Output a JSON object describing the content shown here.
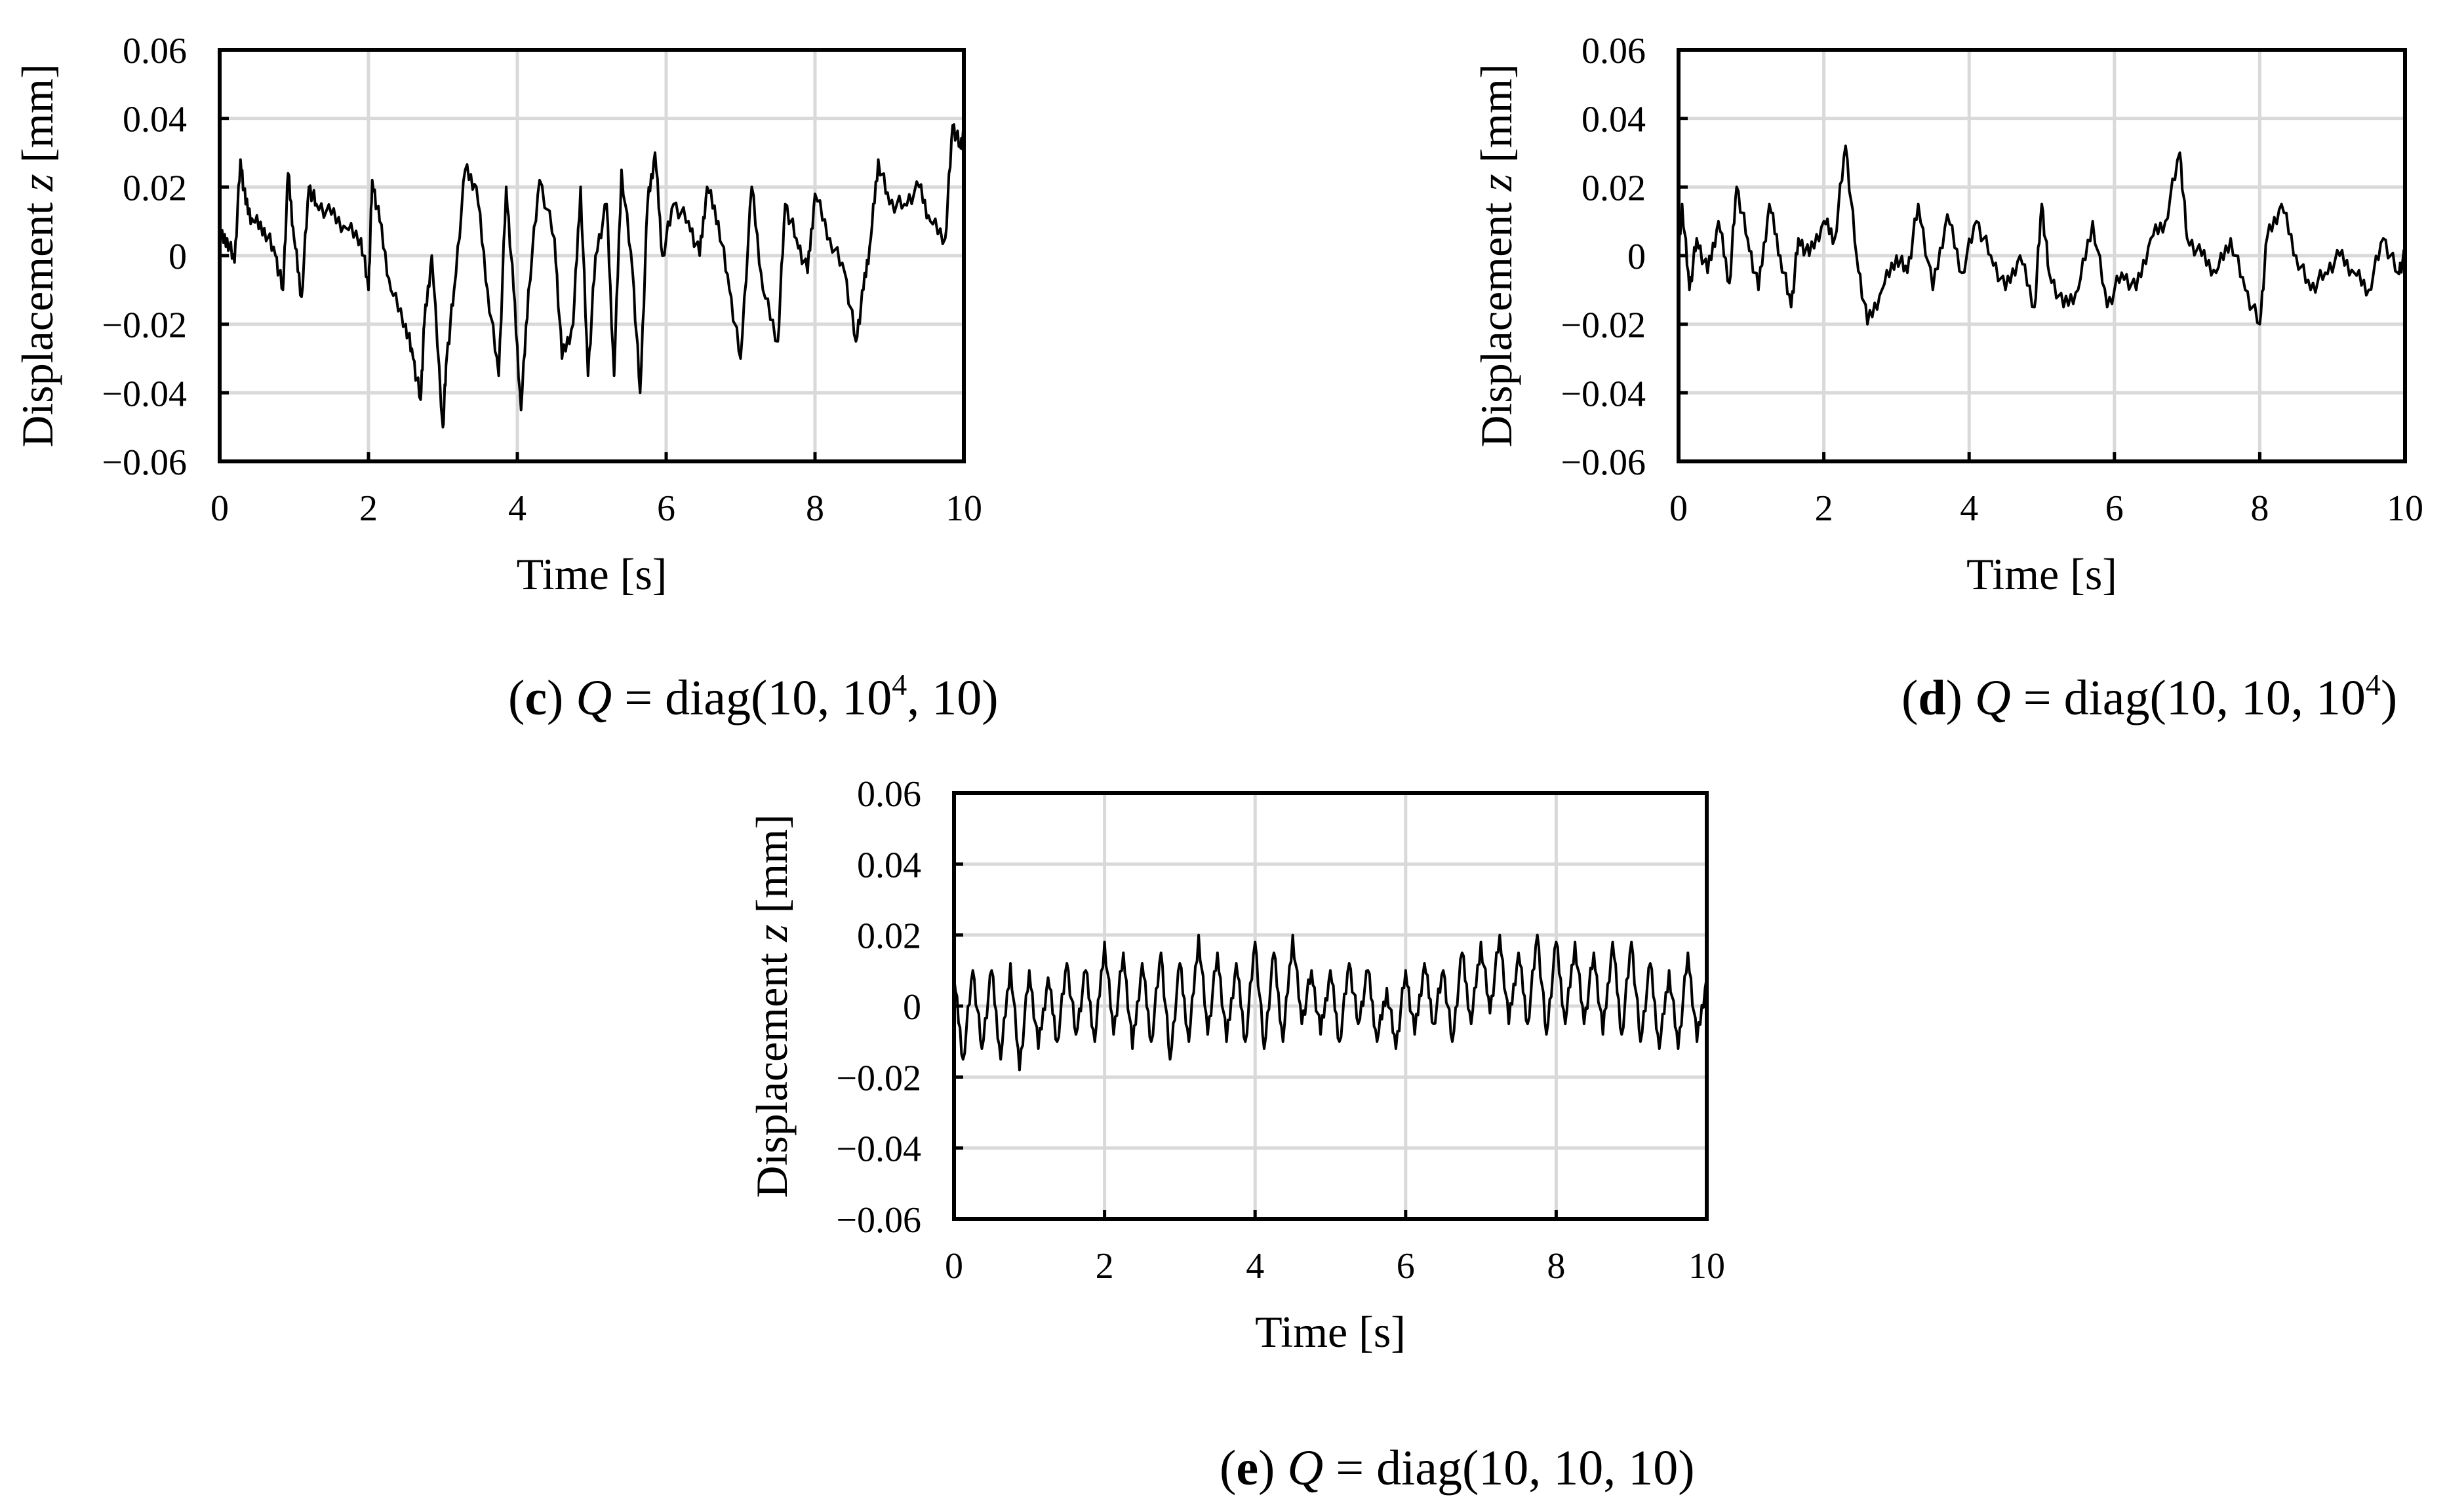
{
  "chart_data": [
    {
      "id": "c",
      "type": "line",
      "caption": {
        "letter": "c",
        "open": "(",
        "close": ")",
        "var": "Q",
        "text": " = diag(10, 10",
        "sup": "4",
        "tail": ", 10)"
      },
      "xlabel": "Time [s]",
      "ylabel_pre": "Displacement ",
      "ylabel_var": "z",
      "ylabel_post": " [mm]",
      "xlim": [
        0,
        10
      ],
      "ylim": [
        -0.06,
        0.06
      ],
      "xticks": [
        0,
        2,
        4,
        6,
        8,
        10
      ],
      "xtick_labels": [
        "0",
        "2",
        "4",
        "6",
        "8",
        "10"
      ],
      "yticks": [
        -0.06,
        -0.04,
        -0.02,
        0,
        0.02,
        0.04,
        0.06
      ],
      "ytick_labels": [
        "−0.06",
        "−0.04",
        "−0.02",
        "0",
        "0.02",
        "0.04",
        "0.06"
      ],
      "grid": true,
      "series": [
        {
          "name": "z",
          "x": [
            0,
            0.1,
            0.2,
            0.28,
            0.35,
            0.45,
            0.6,
            0.75,
            0.85,
            0.92,
            1.0,
            1.1,
            1.2,
            1.3,
            1.5,
            1.7,
            1.9,
            2.0,
            2.05,
            2.15,
            2.3,
            2.5,
            2.6,
            2.7,
            2.75,
            2.85,
            3.0,
            3.05,
            3.15,
            3.3,
            3.45,
            3.6,
            3.75,
            3.85,
            3.95,
            4.05,
            4.15,
            4.3,
            4.5,
            4.6,
            4.75,
            4.85,
            4.95,
            5.05,
            5.2,
            5.3,
            5.4,
            5.55,
            5.65,
            5.75,
            5.85,
            5.95,
            6.1,
            6.3,
            6.45,
            6.55,
            6.7,
            6.85,
            7.0,
            7.15,
            7.3,
            7.5,
            7.6,
            7.75,
            7.9,
            8.0,
            8.2,
            8.4,
            8.55,
            8.65,
            8.75,
            8.85,
            9.0,
            9.2,
            9.4,
            9.55,
            9.75,
            9.85,
            9.95,
            10.0
          ],
          "y": [
            0.005,
            0.005,
            -0.002,
            0.028,
            0.015,
            0.01,
            0.008,
            0.0,
            -0.01,
            0.024,
            0.005,
            -0.012,
            0.02,
            0.015,
            0.012,
            0.008,
            0.005,
            -0.01,
            0.022,
            0.01,
            -0.01,
            -0.02,
            -0.03,
            -0.042,
            -0.02,
            0.0,
            -0.05,
            -0.03,
            -0.01,
            0.025,
            0.02,
            -0.01,
            -0.035,
            0.02,
            -0.01,
            -0.045,
            -0.01,
            0.022,
            0.005,
            -0.03,
            -0.02,
            0.02,
            -0.035,
            0.0,
            0.015,
            -0.035,
            0.025,
            -0.005,
            -0.04,
            0.015,
            0.03,
            0.0,
            0.015,
            0.01,
            0.0,
            0.02,
            0.01,
            -0.01,
            -0.03,
            0.02,
            -0.01,
            -0.025,
            0.015,
            0.005,
            -0.005,
            0.018,
            0.005,
            -0.005,
            -0.025,
            -0.01,
            0.005,
            0.028,
            0.015,
            0.015,
            0.02,
            0.01,
            0.005,
            0.038,
            0.032,
            0.035
          ]
        }
      ]
    },
    {
      "id": "d",
      "type": "line",
      "caption": {
        "letter": "d",
        "open": "(",
        "close": ")",
        "var": "Q",
        "text": " = diag(10, 10, 10",
        "sup": "4",
        "tail": ")"
      },
      "xlabel": "Time [s]",
      "ylabel_pre": "Displacement ",
      "ylabel_var": "z",
      "ylabel_post": " [mm]",
      "xlim": [
        0,
        10
      ],
      "ylim": [
        -0.06,
        0.06
      ],
      "xticks": [
        0,
        2,
        4,
        6,
        8,
        10
      ],
      "xtick_labels": [
        "0",
        "2",
        "4",
        "6",
        "8",
        "10"
      ],
      "yticks": [
        -0.06,
        -0.04,
        -0.02,
        0,
        0.02,
        0.04,
        0.06
      ],
      "ytick_labels": [
        "−0.06",
        "−0.04",
        "−0.02",
        "0",
        "0.02",
        "0.04",
        "0.06"
      ],
      "grid": true,
      "series": [
        {
          "name": "z",
          "x": [
            0,
            0.05,
            0.15,
            0.25,
            0.4,
            0.55,
            0.7,
            0.8,
            0.95,
            1.1,
            1.25,
            1.4,
            1.55,
            1.65,
            1.8,
            2.0,
            2.15,
            2.3,
            2.45,
            2.6,
            2.8,
            3.0,
            3.15,
            3.3,
            3.5,
            3.7,
            3.9,
            4.1,
            4.3,
            4.5,
            4.7,
            4.9,
            5.0,
            5.1,
            5.3,
            5.5,
            5.7,
            5.9,
            6.1,
            6.3,
            6.5,
            6.7,
            6.9,
            7.0,
            7.2,
            7.4,
            7.6,
            7.8,
            8.0,
            8.1,
            8.3,
            8.5,
            8.7,
            8.9,
            9.1,
            9.3,
            9.5,
            9.7,
            9.9,
            10.0
          ],
          "y": [
            0.0,
            0.015,
            -0.01,
            0.005,
            -0.005,
            0.01,
            -0.008,
            0.02,
            0.005,
            -0.01,
            0.015,
            0.0,
            -0.015,
            0.005,
            0.0,
            0.01,
            0.005,
            0.032,
            0.0,
            -0.02,
            -0.01,
            0.0,
            -0.005,
            0.015,
            -0.01,
            0.012,
            -0.005,
            0.01,
            0.0,
            -0.01,
            0.0,
            -0.015,
            0.015,
            -0.005,
            -0.015,
            -0.01,
            0.01,
            -0.015,
            -0.005,
            -0.01,
            0.005,
            0.01,
            0.03,
            0.005,
            0.0,
            -0.005,
            0.005,
            -0.01,
            -0.02,
            0.005,
            0.015,
            0.0,
            -0.01,
            -0.005,
            0.0,
            -0.005,
            -0.01,
            0.005,
            -0.005,
            0.0
          ]
        }
      ]
    },
    {
      "id": "e",
      "type": "line",
      "caption": {
        "letter": "e",
        "open": "(",
        "close": ")",
        "var": "Q",
        "text": " = diag(10, 10, 10)",
        "sup": "",
        "tail": ""
      },
      "xlabel": "Time [s]",
      "ylabel_pre": "Displacement ",
      "ylabel_var": "z",
      "ylabel_post": " [mm]",
      "xlim": [
        0,
        10
      ],
      "ylim": [
        -0.06,
        0.06
      ],
      "xticks": [
        0,
        2,
        4,
        6,
        8,
        10
      ],
      "xtick_labels": [
        "0",
        "2",
        "4",
        "6",
        "8",
        "10"
      ],
      "yticks": [
        -0.06,
        -0.04,
        -0.02,
        0,
        0.02,
        0.04,
        0.06
      ],
      "ytick_labels": [
        "−0.06",
        "−0.04",
        "−0.02",
        "0",
        "0.02",
        "0.04",
        "0.06"
      ],
      "grid": true,
      "series": [
        {
          "name": "z",
          "x": [
            0,
            0.12,
            0.25,
            0.37,
            0.5,
            0.62,
            0.75,
            0.87,
            1.0,
            1.12,
            1.25,
            1.37,
            1.5,
            1.62,
            1.75,
            1.87,
            2.0,
            2.12,
            2.25,
            2.37,
            2.5,
            2.62,
            2.75,
            2.87,
            3.0,
            3.12,
            3.25,
            3.37,
            3.5,
            3.62,
            3.75,
            3.87,
            4.0,
            4.12,
            4.25,
            4.37,
            4.5,
            4.62,
            4.75,
            4.87,
            5.0,
            5.12,
            5.25,
            5.37,
            5.5,
            5.62,
            5.75,
            5.87,
            6.0,
            6.12,
            6.25,
            6.37,
            6.5,
            6.62,
            6.75,
            6.87,
            7.0,
            7.12,
            7.25,
            7.37,
            7.5,
            7.62,
            7.75,
            7.87,
            8.0,
            8.12,
            8.25,
            8.37,
            8.5,
            8.62,
            8.75,
            8.87,
            9.0,
            9.12,
            9.25,
            9.37,
            9.5,
            9.62,
            9.75,
            9.87,
            10.0
          ],
          "y": [
            0.008,
            -0.015,
            0.01,
            -0.012,
            0.01,
            -0.015,
            0.012,
            -0.018,
            0.01,
            -0.012,
            0.008,
            -0.01,
            0.012,
            -0.008,
            0.01,
            -0.01,
            0.018,
            -0.008,
            0.015,
            -0.012,
            0.012,
            -0.01,
            0.015,
            -0.015,
            0.012,
            -0.01,
            0.02,
            -0.008,
            0.015,
            -0.01,
            0.012,
            -0.01,
            0.018,
            -0.012,
            0.015,
            -0.01,
            0.02,
            -0.005,
            0.01,
            -0.008,
            0.01,
            -0.01,
            0.012,
            -0.005,
            0.01,
            -0.01,
            0.005,
            -0.012,
            0.01,
            -0.008,
            0.012,
            -0.005,
            0.01,
            -0.01,
            0.015,
            -0.005,
            0.018,
            -0.002,
            0.02,
            -0.005,
            0.015,
            -0.005,
            0.02,
            -0.008,
            0.018,
            -0.005,
            0.018,
            -0.005,
            0.015,
            -0.008,
            0.018,
            -0.008,
            0.018,
            -0.01,
            0.012,
            -0.012,
            0.01,
            -0.012,
            0.015,
            -0.01,
            0.008
          ]
        }
      ]
    }
  ]
}
